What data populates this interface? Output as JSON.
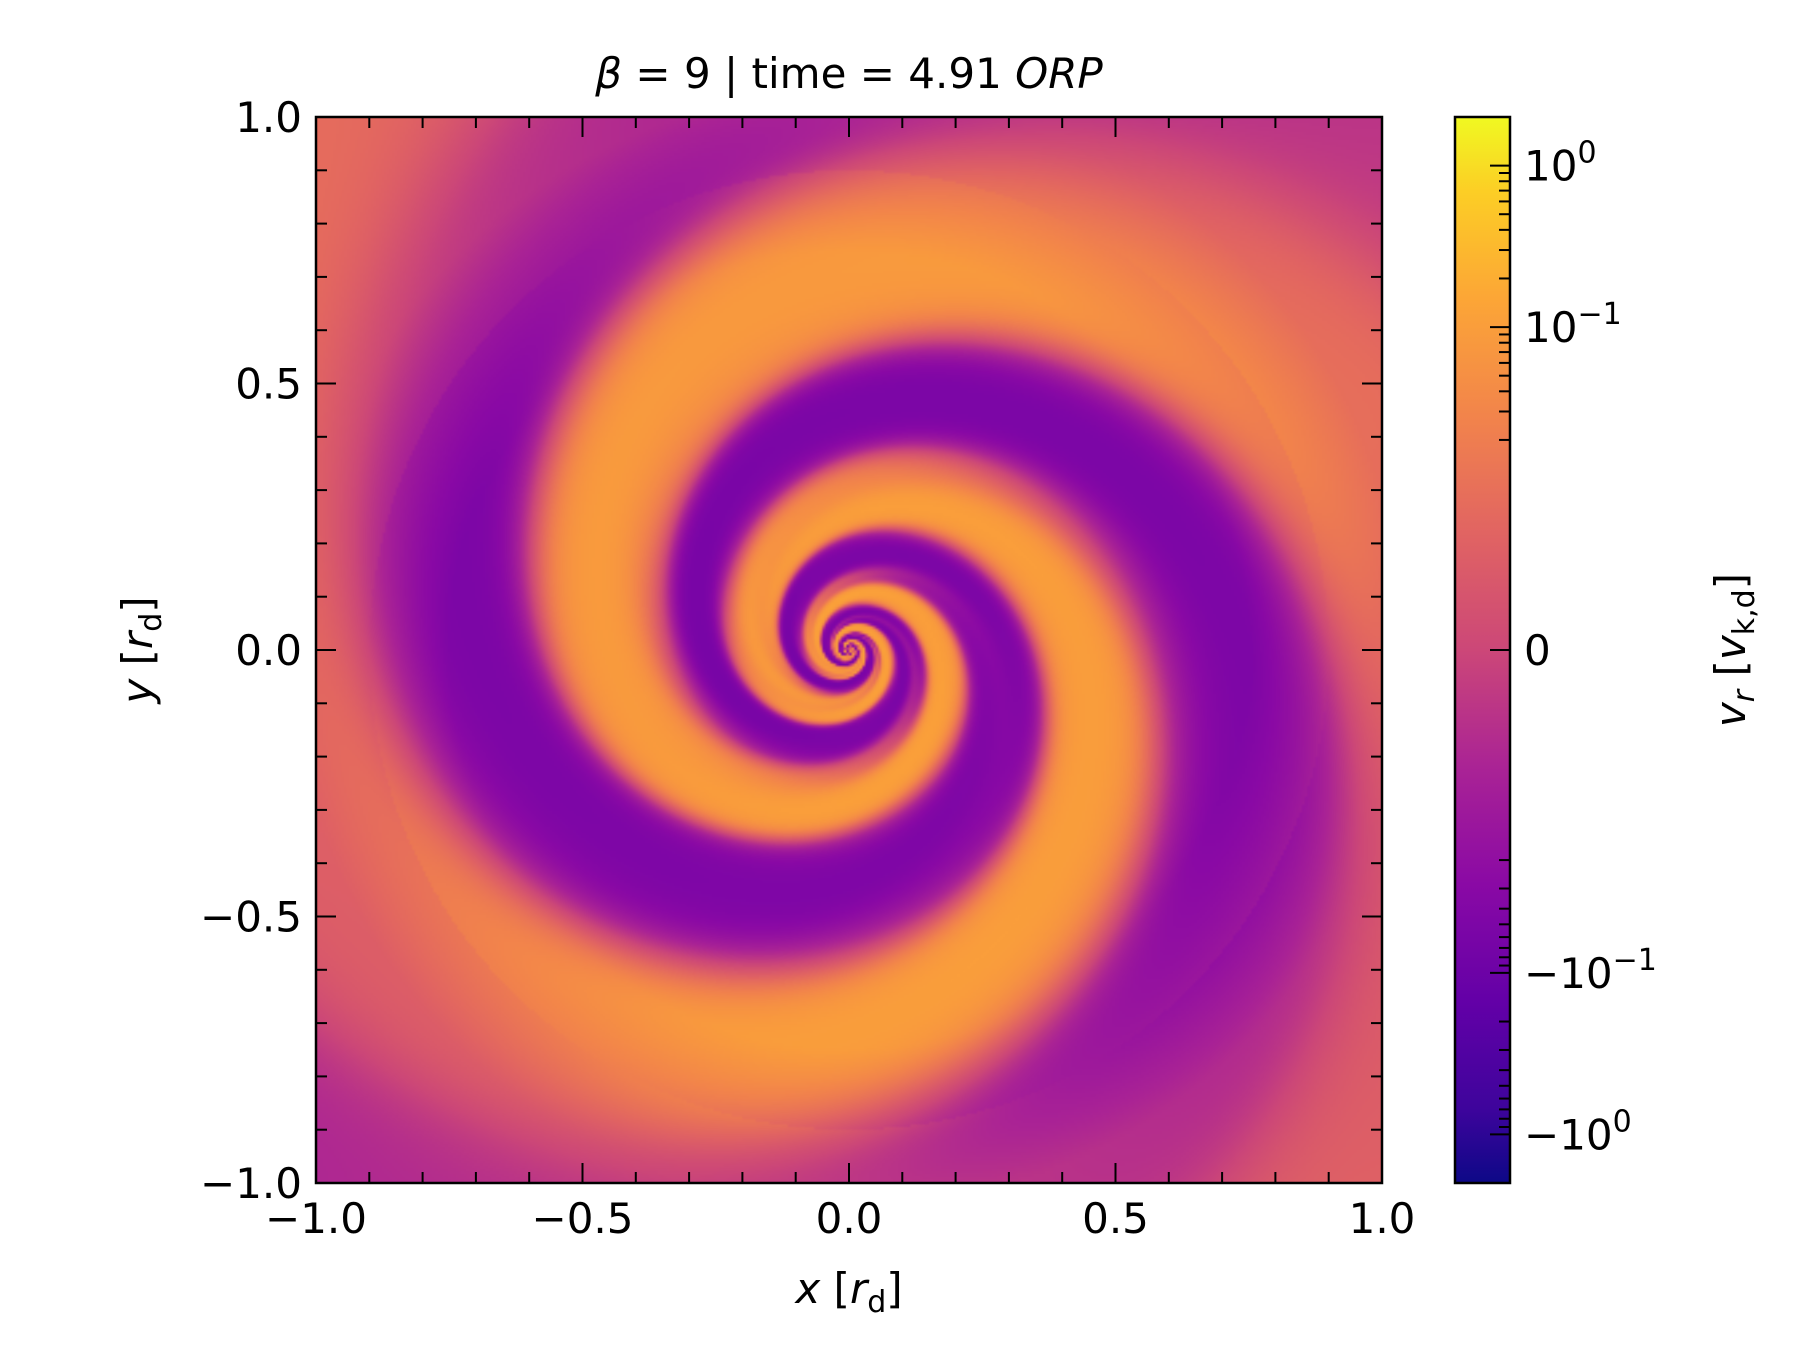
{
  "chart_data": {
    "type": "heatmap",
    "title": {
      "beta_symbol": "β",
      "beta_text": " = 9 | time = 4.91 ",
      "unit_italic": "ORP"
    },
    "xlabel": {
      "var": "x",
      "unit_open": " [",
      "unit_sym": "r",
      "unit_sub": "d",
      "unit_close": "]"
    },
    "ylabel": {
      "var": "y",
      "unit_open": " [",
      "unit_sym": "r",
      "unit_sub": "d",
      "unit_close": "]"
    },
    "xlim": [
      -1.0,
      1.0
    ],
    "ylim": [
      -1.0,
      1.0
    ],
    "x_ticks": [
      {
        "value": -1.0,
        "label": "−1.0"
      },
      {
        "value": -0.5,
        "label": "−0.5"
      },
      {
        "value": 0.0,
        "label": "0.0"
      },
      {
        "value": 0.5,
        "label": "0.5"
      },
      {
        "value": 1.0,
        "label": "1.0"
      }
    ],
    "y_ticks": [
      {
        "value": -1.0,
        "label": "−1.0"
      },
      {
        "value": -0.5,
        "label": "−0.5"
      },
      {
        "value": 0.0,
        "label": "0.0"
      },
      {
        "value": 0.5,
        "label": "0.5"
      },
      {
        "value": 1.0,
        "label": "1.0"
      }
    ],
    "minor_tick_step": 0.1,
    "colorbar": {
      "colormap": "plasma",
      "scale": "symlog",
      "linthresh": 0.01,
      "range": [
        -2.0,
        2.0
      ],
      "label": {
        "var": "v",
        "sub": "r",
        "unit_open": " [",
        "unit_sym": "v",
        "unit_sub": "k,d",
        "unit_close": "]"
      },
      "ticks": [
        {
          "value": 1.0,
          "mantissa": "10",
          "exp": "0"
        },
        {
          "value": 0.1,
          "mantissa": "10",
          "exp": "−1"
        },
        {
          "value": 0.0,
          "mantissa": "0",
          "exp": ""
        },
        {
          "value": -0.1,
          "mantissa": "−10",
          "exp": "−1"
        },
        {
          "value": -1.0,
          "mantissa": "−10",
          "exp": "0"
        }
      ]
    },
    "field_description": "log spiral velocity field, mix of outflow (orange) and inflow (purple) arms"
  }
}
